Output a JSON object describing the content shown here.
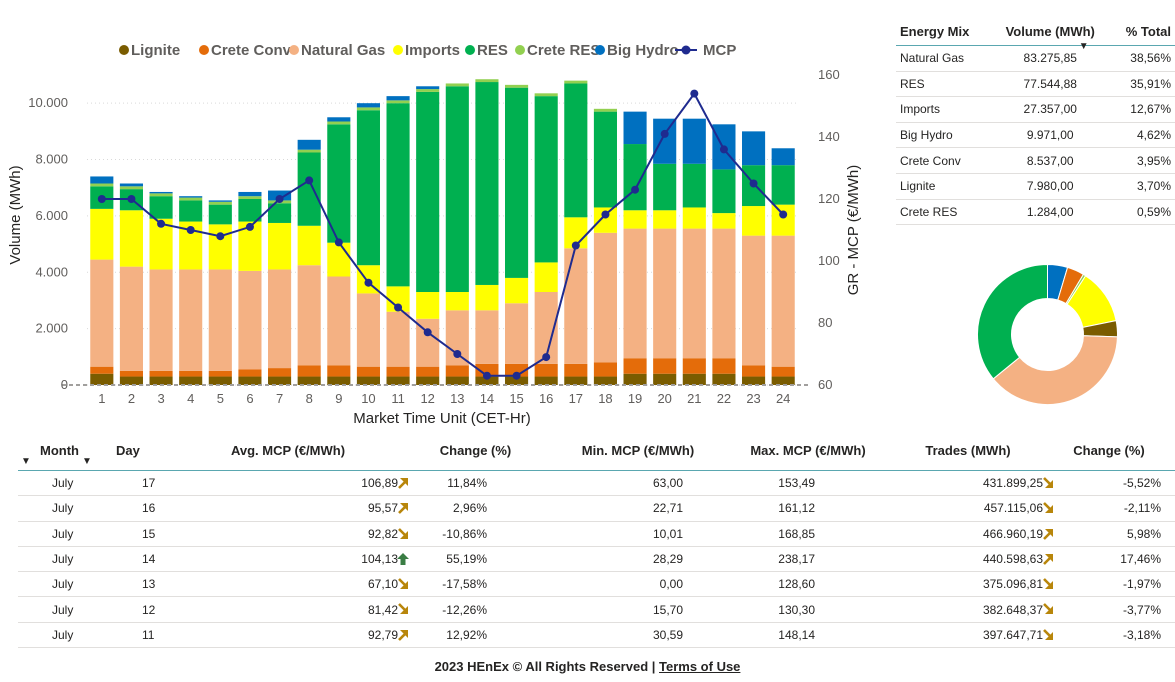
{
  "chart_data": {
    "type": "bar",
    "stacked": true,
    "xlabel": "Market Time Unit (CET-Hr)",
    "ylabel": "Volume (MWh)",
    "y2label": "GR - MCP (€/MWh)",
    "ylim": [
      0,
      11000
    ],
    "y2lim": [
      60,
      160
    ],
    "yticks": [
      "0",
      "2.000",
      "4.000",
      "6.000",
      "8.000",
      "10.000"
    ],
    "y2ticks": [
      "60",
      "80",
      "100",
      "120",
      "140",
      "160"
    ],
    "categories": [
      "1",
      "2",
      "3",
      "4",
      "5",
      "6",
      "7",
      "8",
      "9",
      "10",
      "11",
      "12",
      "13",
      "14",
      "15",
      "16",
      "17",
      "18",
      "19",
      "20",
      "21",
      "22",
      "23",
      "24"
    ],
    "legend_position": "top",
    "series": [
      {
        "name": "Lignite",
        "color": "#7a5c00",
        "values": [
          400,
          300,
          300,
          300,
          300,
          300,
          300,
          300,
          300,
          300,
          300,
          300,
          300,
          300,
          300,
          300,
          300,
          300,
          400,
          400,
          400,
          400,
          300,
          300
        ]
      },
      {
        "name": "Crete Conv",
        "color": "#e46c0a",
        "values": [
          250,
          200,
          200,
          200,
          200,
          250,
          300,
          400,
          400,
          350,
          350,
          350,
          400,
          450,
          450,
          450,
          450,
          500,
          550,
          550,
          550,
          550,
          400,
          350
        ]
      },
      {
        "name": "Natural Gas",
        "color": "#f4b183",
        "values": [
          3800,
          3700,
          3600,
          3600,
          3600,
          3500,
          3500,
          3550,
          3150,
          2600,
          1950,
          1700,
          1950,
          1900,
          2150,
          2550,
          4100,
          4600,
          4600,
          4600,
          4600,
          4600,
          4600,
          4650
        ]
      },
      {
        "name": "Imports",
        "color": "#ffff00",
        "values": [
          1800,
          2000,
          1800,
          1700,
          1600,
          1750,
          1650,
          1400,
          1200,
          1000,
          900,
          950,
          650,
          900,
          900,
          1050,
          1100,
          900,
          650,
          650,
          750,
          550,
          1050,
          1100
        ]
      },
      {
        "name": "RES",
        "color": "#00b050",
        "values": [
          800,
          750,
          800,
          750,
          700,
          800,
          700,
          2600,
          4200,
          5500,
          6500,
          7100,
          7300,
          7200,
          6750,
          5900,
          4750,
          3400,
          2350,
          1650,
          1550,
          1550,
          1450,
          1400
        ]
      },
      {
        "name": "Crete RES",
        "color": "#92d050",
        "values": [
          100,
          100,
          100,
          100,
          100,
          100,
          100,
          100,
          100,
          100,
          100,
          100,
          100,
          100,
          100,
          100,
          100,
          100,
          0,
          0,
          0,
          0,
          0,
          0
        ]
      },
      {
        "name": "Big Hydro",
        "color": "#0070c0",
        "values": [
          250,
          100,
          50,
          50,
          50,
          150,
          350,
          350,
          150,
          150,
          150,
          100,
          0,
          0,
          0,
          0,
          0,
          0,
          1150,
          1600,
          1600,
          1600,
          1200,
          600
        ]
      },
      {
        "name": "MCP",
        "color": "#1f2b8f",
        "axis": "right",
        "type": "line",
        "values": [
          120,
          120,
          112,
          110,
          108,
          111,
          120,
          126,
          106,
          93,
          85,
          77,
          70,
          63,
          63,
          69,
          105,
          115,
          123,
          141,
          154,
          136,
          125,
          115
        ]
      }
    ]
  },
  "mix_table": {
    "headers": [
      "Energy Mix",
      "Volume (MWh)",
      "% Total"
    ],
    "sort_caret": "▼",
    "rows": [
      {
        "name": "Natural Gas",
        "volume": "83.275,85",
        "pct": "38,56%"
      },
      {
        "name": "RES",
        "volume": "77.544,88",
        "pct": "35,91%"
      },
      {
        "name": "Imports",
        "volume": "27.357,00",
        "pct": "12,67%"
      },
      {
        "name": "Big Hydro",
        "volume": "9.971,00",
        "pct": "4,62%"
      },
      {
        "name": "Crete Conv",
        "volume": "8.537,00",
        "pct": "3,95%"
      },
      {
        "name": "Lignite",
        "volume": "7.980,00",
        "pct": "3,70%"
      },
      {
        "name": "Crete RES",
        "volume": "1.284,00",
        "pct": "0,59%"
      }
    ]
  },
  "donut": {
    "order": [
      "Big Hydro",
      "Crete Conv",
      "Crete RES",
      "Imports",
      "Lignite",
      "Natural Gas",
      "RES"
    ],
    "values": [
      4.62,
      3.95,
      0.59,
      12.67,
      3.7,
      38.56,
      35.91
    ],
    "colors": [
      "#0070c0",
      "#e46c0a",
      "#92d050",
      "#ffff00",
      "#7a5c00",
      "#f4b183",
      "#00b050"
    ]
  },
  "daily_table": {
    "headers": [
      "Month",
      "Day",
      "Avg. MCP (€/MWh)",
      "Change (%)",
      "Min. MCP (€/MWh)",
      "Max. MCP (€/MWh)",
      "Trades (MWh)",
      "Change (%)"
    ],
    "sort_caret": "▼",
    "rows": [
      {
        "month": "July",
        "day": "17",
        "avg": "106,89",
        "arrow1": "up-right",
        "chg1": "11,84%",
        "min": "63,00",
        "max": "153,49",
        "trades": "431.899,25",
        "arrow2": "down-right",
        "chg2": "-5,52%"
      },
      {
        "month": "July",
        "day": "16",
        "avg": "95,57",
        "arrow1": "up-right",
        "chg1": "2,96%",
        "min": "22,71",
        "max": "161,12",
        "trades": "457.115,06",
        "arrow2": "down-right",
        "chg2": "-2,11%"
      },
      {
        "month": "July",
        "day": "15",
        "avg": "92,82",
        "arrow1": "down-right",
        "chg1": "-10,86%",
        "min": "10,01",
        "max": "168,85",
        "trades": "466.960,19",
        "arrow2": "up-right",
        "chg2": "5,98%"
      },
      {
        "month": "July",
        "day": "14",
        "avg": "104,13",
        "arrow1": "up",
        "chg1": "55,19%",
        "min": "28,29",
        "max": "238,17",
        "trades": "440.598,63",
        "arrow2": "up-right",
        "chg2": "17,46%"
      },
      {
        "month": "July",
        "day": "13",
        "avg": "67,10",
        "arrow1": "down-right",
        "chg1": "-17,58%",
        "min": "0,00",
        "max": "128,60",
        "trades": "375.096,81",
        "arrow2": "down-right",
        "chg2": "-1,97%"
      },
      {
        "month": "July",
        "day": "12",
        "avg": "81,42",
        "arrow1": "down-right",
        "chg1": "-12,26%",
        "min": "15,70",
        "max": "130,30",
        "trades": "382.648,37",
        "arrow2": "down-right",
        "chg2": "-3,77%"
      },
      {
        "month": "July",
        "day": "11",
        "avg": "92,79",
        "arrow1": "up-right",
        "chg1": "12,92%",
        "min": "30,59",
        "max": "148,14",
        "trades": "397.647,71",
        "arrow2": "down-right",
        "chg2": "-3,18%"
      }
    ]
  },
  "footer": {
    "copyright": "2023 HEnEx © All Rights Reserved | ",
    "terms": "Terms of Use"
  }
}
